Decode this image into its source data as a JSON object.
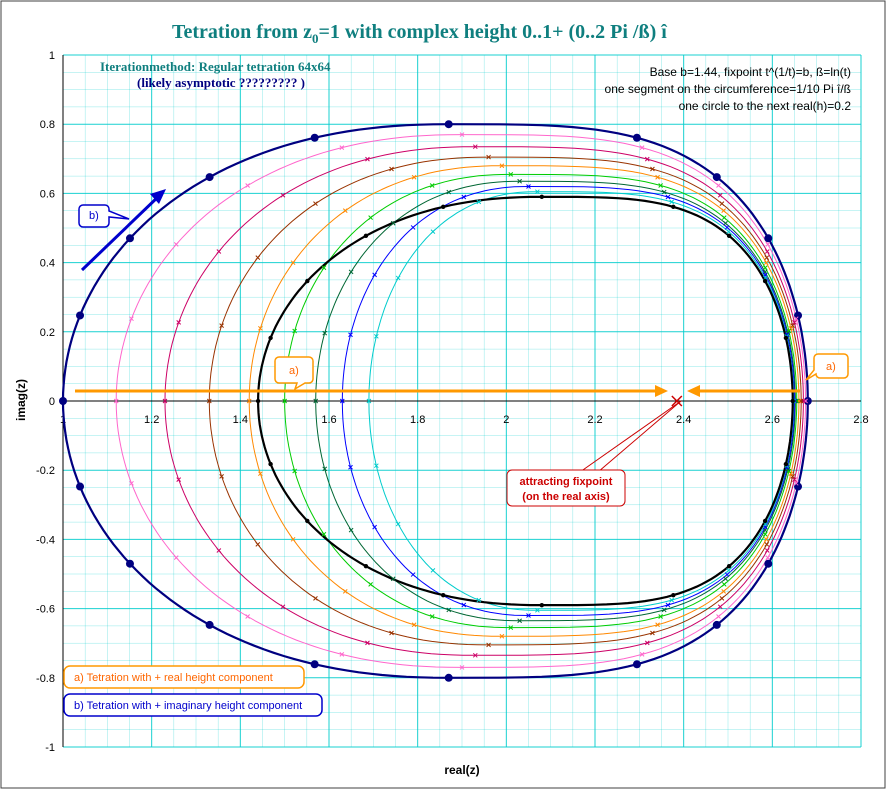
{
  "chart_data": {
    "type": "scatter",
    "title": "Tetration from z",
    "title_sub": "0",
    "title_rest": "=1 with complex height 0..1+ (0..2 Pi /ß) î",
    "method_line1": "Iterationmethod: Regular tetration 64x64",
    "method_line2": "(likely asymptotic ????????? )",
    "info_lines": [
      "Base b=1.44, fixpoint t^(1/t)=b, ß=ln(t)",
      "one segment on the circumference=1/10 Pi î/ß",
      "one circle to the next  real(h)=0.2"
    ],
    "xlabel": "real(z)",
    "ylabel": "imag(z)",
    "xlim": [
      1,
      2.8
    ],
    "ylim": [
      -1,
      1
    ],
    "x_ticks": [
      "1",
      "1.2",
      "1.4",
      "1.6",
      "1.8",
      "2",
      "2.2",
      "2.4",
      "2.6",
      "2.8"
    ],
    "y_ticks": [
      "1",
      "0.8",
      "0.6",
      "0.4",
      "0.2",
      "0",
      "-0.2",
      "-0.4",
      "-0.6",
      "-0.8",
      "-1"
    ],
    "grid": true,
    "fixpoint": {
      "x": 2.3846,
      "y": 0
    },
    "series": [
      {
        "color": "#000080",
        "left": 1.0,
        "right": 2.68,
        "cx": 1.87,
        "ry": 0.8
      },
      {
        "color": "#ff66cc",
        "left": 1.12,
        "right": 2.675,
        "cx": 1.9,
        "ry": 0.77
      },
      {
        "color": "#cc0066",
        "left": 1.23,
        "right": 2.67,
        "cx": 1.93,
        "ry": 0.735
      },
      {
        "color": "#993300",
        "left": 1.33,
        "right": 2.665,
        "cx": 1.96,
        "ry": 0.705
      },
      {
        "color": "#ff8800",
        "left": 1.42,
        "right": 2.66,
        "cx": 1.99,
        "ry": 0.68
      },
      {
        "color": "#00cc00",
        "left": 1.5,
        "right": 2.655,
        "cx": 2.01,
        "ry": 0.655
      },
      {
        "color": "#006633",
        "left": 1.57,
        "right": 2.652,
        "cx": 2.03,
        "ry": 0.635
      },
      {
        "color": "#0000ff",
        "left": 1.63,
        "right": 2.65,
        "cx": 2.05,
        "ry": 0.62
      },
      {
        "color": "#00cccc",
        "left": 1.69,
        "right": 2.648,
        "cx": 2.07,
        "ry": 0.605
      },
      {
        "color": "#000000",
        "left": 1.44,
        "right": 2.646,
        "cx": 2.08,
        "ry": 0.59
      }
    ],
    "arrow_a_label": "a)",
    "arrow_b_label": "b)",
    "fixpoint_label_line1": "attracting fixpoint",
    "fixpoint_label_line2": "(on the real axis)",
    "legend_a": "a) Tetration with + real height component",
    "legend_b": "b) Tetration with + imaginary height component",
    "colors": {
      "title": "#0f7f7f",
      "grid": "#00cccc",
      "arrow_a": "#ff9900",
      "arrow_b": "#0000cc",
      "fix": "#cc0000"
    }
  }
}
